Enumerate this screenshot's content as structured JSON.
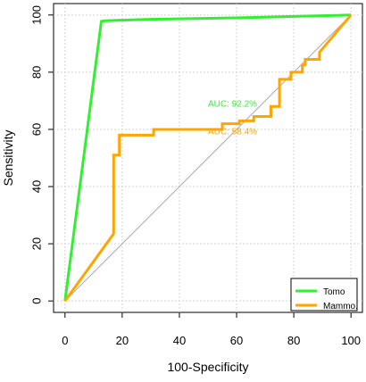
{
  "chart_data": {
    "type": "line",
    "xlabel": "100-Specificity",
    "ylabel": "Sensitivity",
    "xlim": [
      -4,
      104
    ],
    "ylim": [
      -4,
      104
    ],
    "x_ticks": [
      "0",
      "20",
      "40",
      "60",
      "80",
      "100"
    ],
    "y_ticks": [
      "0",
      "20",
      "40",
      "60",
      "80",
      "100"
    ],
    "grid": true,
    "legend_position": "bottom-right",
    "reference_line": {
      "x": [
        0,
        100
      ],
      "y": [
        0,
        100
      ],
      "color": "#aaaaaa"
    },
    "series": [
      {
        "name": "Tomo",
        "color": "#33ee33",
        "auc_label": "AUC: 92.2%",
        "auc_pos": [
          50,
          68
        ],
        "x": [
          0,
          12.7,
          14,
          30,
          60,
          80,
          100
        ],
        "y": [
          0,
          97.8,
          98,
          98.5,
          99,
          99.5,
          100
        ]
      },
      {
        "name": "Mammo.",
        "color": "#ffa500",
        "auc_label": "AUC: 58.4%",
        "auc_pos": [
          50,
          58.3
        ],
        "x": [
          0,
          17,
          17,
          19,
          19,
          31,
          31,
          55,
          55,
          61,
          61,
          66,
          66,
          72,
          72,
          75,
          75,
          79,
          79,
          83,
          83,
          84,
          84,
          89,
          89,
          100
        ],
        "y": [
          0,
          23.5,
          51,
          51,
          58,
          58,
          60,
          60,
          62,
          62,
          63,
          63,
          64.5,
          64.5,
          68,
          68,
          77.5,
          77.5,
          80,
          80,
          82.5,
          82.5,
          84.5,
          84.5,
          87,
          100
        ]
      }
    ]
  }
}
